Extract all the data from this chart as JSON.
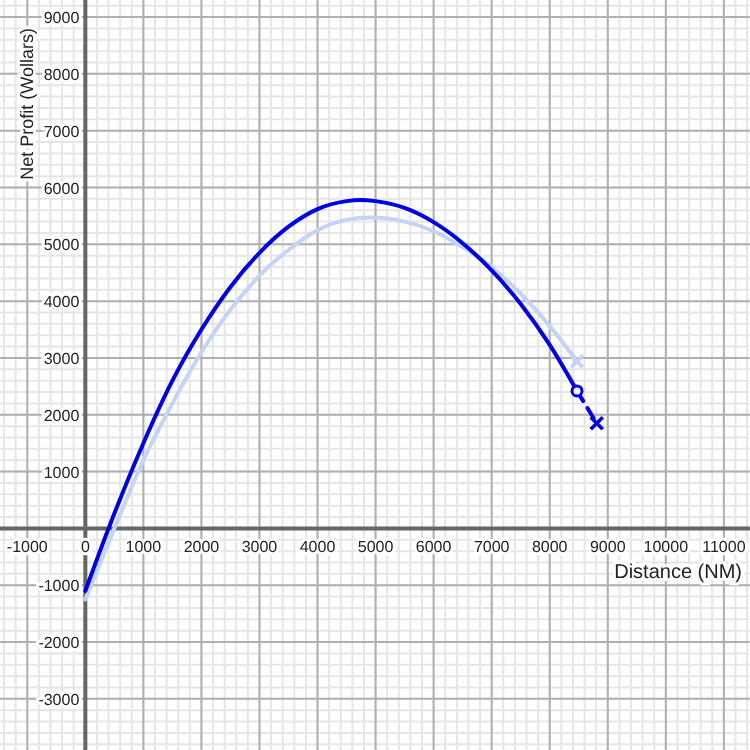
{
  "chart_data": {
    "type": "line",
    "xlabel": "Distance (NM)",
    "ylabel": "Net Profit (Wollars)",
    "xlim": [
      -1470,
      11450
    ],
    "ylim": [
      -3900,
      9300
    ],
    "xticks": [
      -1000,
      0,
      1000,
      2000,
      3000,
      4000,
      5000,
      6000,
      7000,
      8000,
      9000,
      10000,
      11000
    ],
    "yticks": [
      -3000,
      -2000,
      -1000,
      1000,
      2000,
      3000,
      4000,
      5000,
      6000,
      7000,
      8000,
      9000
    ],
    "grid": true,
    "series": [
      {
        "color": "#c4d4f4",
        "x": [
          0,
          500,
          1000,
          1500,
          2000,
          2500,
          3000,
          3500,
          4000,
          4500,
          4900,
          5500,
          6000,
          6500,
          7000,
          7500,
          8000,
          8470
        ],
        "values": [
          -1250,
          0,
          1200,
          2200,
          3100,
          3850,
          4450,
          4900,
          5250,
          5430,
          5470,
          5400,
          5230,
          4950,
          4600,
          4130,
          3560,
          2940
        ]
      },
      {
        "color": "#c4d4f4",
        "type": "scatter",
        "marker": "cross",
        "x": [
          8470
        ],
        "values": [
          2940
        ]
      },
      {
        "color": "#0000e6",
        "x": [
          0,
          400,
          1000,
          1500,
          2000,
          2500,
          3000,
          3500,
          4000,
          4500,
          4730,
          5000,
          5500,
          6000,
          6500,
          7000,
          7500,
          8000,
          8470
        ],
        "values": [
          -1100,
          0,
          1500,
          2600,
          3500,
          4250,
          4850,
          5310,
          5620,
          5760,
          5780,
          5760,
          5640,
          5390,
          5020,
          4540,
          3950,
          3230,
          2420
        ]
      },
      {
        "color": "#0000e6",
        "line_style": "dashed",
        "x": [
          8470,
          8810
        ],
        "values": [
          2420,
          1850
        ]
      },
      {
        "color": "#0000e6",
        "type": "scatter",
        "marker": "circle",
        "x": [
          8470
        ],
        "values": [
          2420
        ]
      },
      {
        "color": "#0000e6",
        "type": "scatter",
        "marker": "cross",
        "x": [
          8810
        ],
        "values": [
          1850
        ]
      }
    ]
  }
}
